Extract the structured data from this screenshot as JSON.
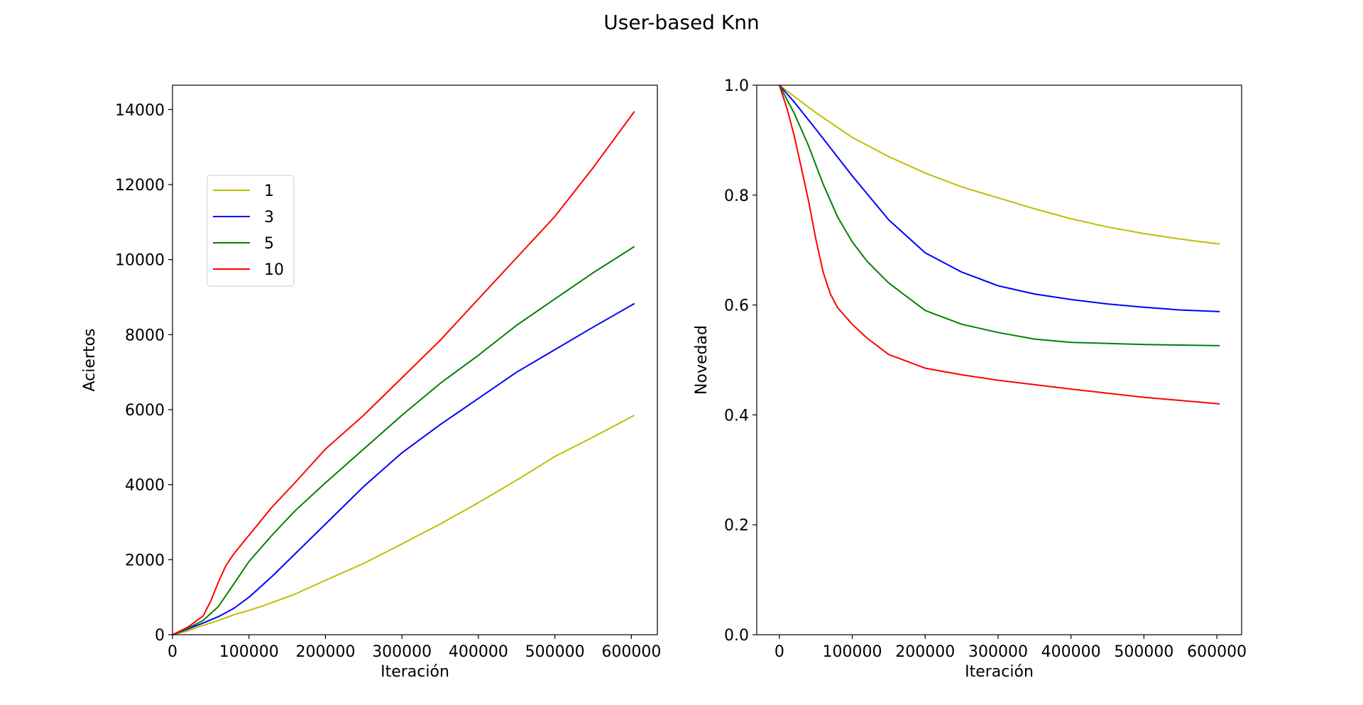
{
  "figure": {
    "title": "User-based Knn"
  },
  "chart_data": [
    {
      "type": "line",
      "xlabel": "Iteración",
      "ylabel": "Aciertos",
      "xlim": [
        0,
        634000
      ],
      "ylim": [
        0,
        14650
      ],
      "xticks": [
        0,
        100000,
        200000,
        300000,
        400000,
        500000,
        600000
      ],
      "yticks": [
        0,
        2000,
        4000,
        6000,
        8000,
        10000,
        12000,
        14000
      ],
      "grid": false,
      "legend": {
        "position": "upper-left",
        "entries": [
          "1",
          "3",
          "5",
          "10"
        ]
      },
      "series": [
        {
          "name": "1",
          "color": "#bfbf00",
          "x": [
            0,
            20000,
            40000,
            60000,
            80000,
            100000,
            120000,
            160000,
            200000,
            250000,
            300000,
            350000,
            400000,
            450000,
            500000,
            550000,
            604000
          ],
          "y": [
            0,
            100,
            250,
            380,
            530,
            650,
            780,
            1080,
            1450,
            1900,
            2420,
            2950,
            3520,
            4120,
            4750,
            5270,
            5850
          ]
        },
        {
          "name": "3",
          "color": "#0000ff",
          "x": [
            0,
            20000,
            40000,
            60000,
            80000,
            100000,
            130000,
            160000,
            200000,
            250000,
            300000,
            350000,
            400000,
            450000,
            500000,
            550000,
            604000
          ],
          "y": [
            0,
            150,
            310,
            480,
            700,
            1000,
            1550,
            2150,
            2950,
            3950,
            4850,
            5600,
            6300,
            7000,
            7600,
            8200,
            8830
          ]
        },
        {
          "name": "5",
          "color": "#008000",
          "x": [
            0,
            20000,
            40000,
            60000,
            80000,
            100000,
            130000,
            160000,
            200000,
            250000,
            300000,
            350000,
            400000,
            450000,
            500000,
            550000,
            604000
          ],
          "y": [
            0,
            170,
            380,
            750,
            1350,
            1950,
            2650,
            3300,
            4050,
            4950,
            5850,
            6700,
            7450,
            8250,
            8950,
            9650,
            10350
          ]
        },
        {
          "name": "10",
          "color": "#ff0000",
          "x": [
            0,
            20000,
            40000,
            50000,
            60000,
            70000,
            80000,
            100000,
            130000,
            160000,
            200000,
            250000,
            300000,
            350000,
            400000,
            450000,
            500000,
            550000,
            604000
          ],
          "y": [
            0,
            200,
            500,
            900,
            1400,
            1850,
            2150,
            2650,
            3400,
            4050,
            4950,
            5850,
            6850,
            7850,
            8950,
            10050,
            11150,
            12450,
            13950
          ]
        }
      ]
    },
    {
      "type": "line",
      "xlabel": "Iteración",
      "ylabel": "Novedad",
      "xlim": [
        -31000,
        634000
      ],
      "ylim": [
        0.0,
        1.0
      ],
      "xticks": [
        0,
        100000,
        200000,
        300000,
        400000,
        500000,
        600000
      ],
      "yticks": [
        0.0,
        0.2,
        0.4,
        0.6,
        0.8,
        1.0
      ],
      "ytick_labels": [
        "0.0",
        "0.2",
        "0.4",
        "0.6",
        "0.8",
        "1.0"
      ],
      "grid": false,
      "series": [
        {
          "name": "1",
          "color": "#bfbf00",
          "x": [
            0,
            20000,
            50000,
            100000,
            150000,
            200000,
            250000,
            300000,
            350000,
            400000,
            450000,
            500000,
            550000,
            604000
          ],
          "y": [
            1.0,
            0.98,
            0.95,
            0.905,
            0.87,
            0.84,
            0.815,
            0.795,
            0.775,
            0.757,
            0.742,
            0.73,
            0.72,
            0.711
          ]
        },
        {
          "name": "3",
          "color": "#0000ff",
          "x": [
            0,
            20000,
            50000,
            100000,
            150000,
            200000,
            250000,
            300000,
            350000,
            400000,
            450000,
            500000,
            550000,
            604000
          ],
          "y": [
            1.0,
            0.97,
            0.92,
            0.835,
            0.755,
            0.695,
            0.66,
            0.635,
            0.62,
            0.61,
            0.602,
            0.596,
            0.591,
            0.588
          ]
        },
        {
          "name": "5",
          "color": "#008000",
          "x": [
            0,
            20000,
            40000,
            60000,
            80000,
            100000,
            120000,
            150000,
            200000,
            250000,
            300000,
            350000,
            400000,
            500000,
            604000
          ],
          "y": [
            1.0,
            0.95,
            0.89,
            0.82,
            0.76,
            0.715,
            0.68,
            0.64,
            0.59,
            0.565,
            0.55,
            0.538,
            0.532,
            0.528,
            0.526
          ]
        },
        {
          "name": "10",
          "color": "#ff0000",
          "x": [
            0,
            10000,
            20000,
            30000,
            40000,
            50000,
            60000,
            70000,
            80000,
            100000,
            120000,
            150000,
            200000,
            250000,
            300000,
            400000,
            500000,
            604000
          ],
          "y": [
            1.0,
            0.96,
            0.91,
            0.85,
            0.79,
            0.72,
            0.66,
            0.62,
            0.595,
            0.565,
            0.54,
            0.51,
            0.485,
            0.473,
            0.463,
            0.447,
            0.432,
            0.42
          ]
        }
      ]
    }
  ]
}
